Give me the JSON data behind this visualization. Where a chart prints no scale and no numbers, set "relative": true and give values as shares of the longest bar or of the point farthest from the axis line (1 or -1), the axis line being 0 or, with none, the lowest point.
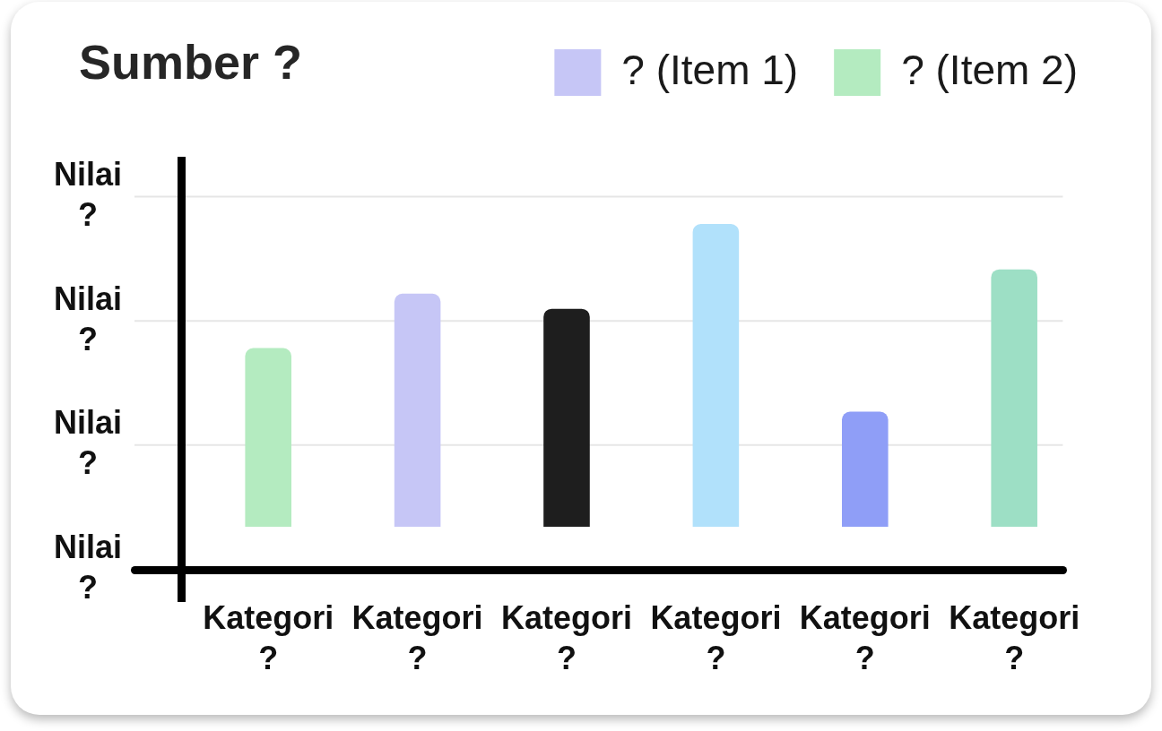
{
  "chart_data": {
    "type": "bar",
    "title": "Sumber ?",
    "categories": [
      "Kategori ?",
      "Kategori ?",
      "Kategori ?",
      "Kategori ?",
      "Kategori ?",
      "Kategori ?"
    ],
    "relative": true,
    "series": [
      {
        "name": "? (Item 1)",
        "color": "#c6c6f6",
        "colors": [
          null,
          "#c6c6f6",
          "#1e1e1e",
          "#b1e1fb",
          "#8f9ef7",
          null
        ],
        "values": [
          null,
          0.77,
          0.72,
          1,
          0.38,
          null
        ]
      },
      {
        "name": "? (Item 2)",
        "color": "#b4ebc0",
        "colors": [
          "#b4ebc0",
          null,
          null,
          null,
          null,
          "#9ddfc5"
        ],
        "values": [
          0.59,
          null,
          null,
          null,
          null,
          0.85
        ]
      }
    ],
    "ref_lines": [
      {
        "axis": "y",
        "value": 0.27,
        "label": "Nilai ?",
        "color": "#e6e6e6"
      },
      {
        "axis": "y",
        "value": 0.68,
        "label": "Nilai ?",
        "color": "#e6e6e6"
      },
      {
        "axis": "y",
        "value": 1.09,
        "label": "Nilai ?",
        "color": "#e6e6e6"
      }
    ],
    "annotations": [
      "Nilai ?"
    ],
    "legend": "top right"
  }
}
